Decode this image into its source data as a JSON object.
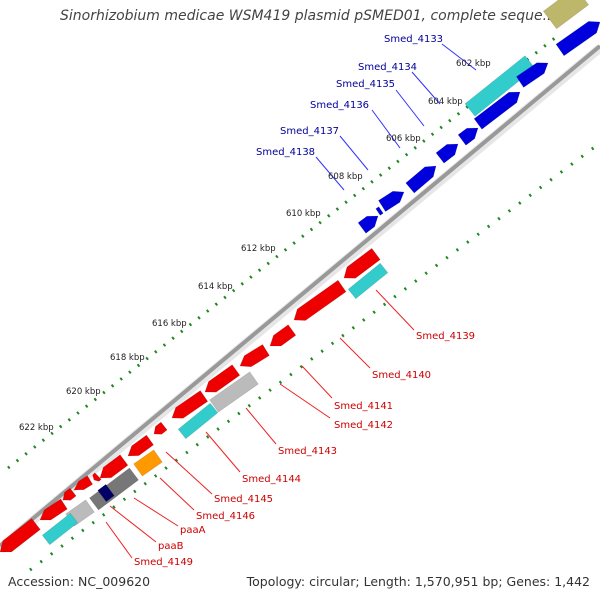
{
  "title": "Sinorhizobium medicae WSM419 plasmid pSMED01, complete seque...",
  "footer": {
    "accession": "Accession: NC_009620",
    "stats": "Topology: circular; Length: 1,570,951 bp; Genes: 1,442"
  },
  "ticks": [
    "602 kbp",
    "604 kbp",
    "606 kbp",
    "608 kbp",
    "610 kbp",
    "612 kbp",
    "614 kbp",
    "616 kbp",
    "618 kbp",
    "620 kbp",
    "622 kbp"
  ],
  "colors": {
    "forward_cds": "#0000dd",
    "reverse_cds": "#ee0000",
    "cyan_feature": "#33cccc",
    "gray_feature": "#bbbbbb",
    "dark_gray_feature": "#777777",
    "orange_feature": "#ff9900",
    "navy_feature": "#000066",
    "khaki_feature": "#bdb76b",
    "tick_marks": "#228822",
    "backbone": "#999999",
    "forward_label": "#000099",
    "reverse_label": "#cc0000"
  },
  "gene_labels_forward": [
    "Smed_4133",
    "Smed_4134",
    "Smed_4135",
    "Smed_4136",
    "Smed_4137",
    "Smed_4138"
  ],
  "gene_labels_reverse": [
    "Smed_4139",
    "Smed_4140",
    "Smed_4141",
    "Smed_4142",
    "Smed_4143",
    "Smed_4144",
    "Smed_4145",
    "Smed_4146",
    "paaA",
    "paaB",
    "Smed_4149"
  ]
}
